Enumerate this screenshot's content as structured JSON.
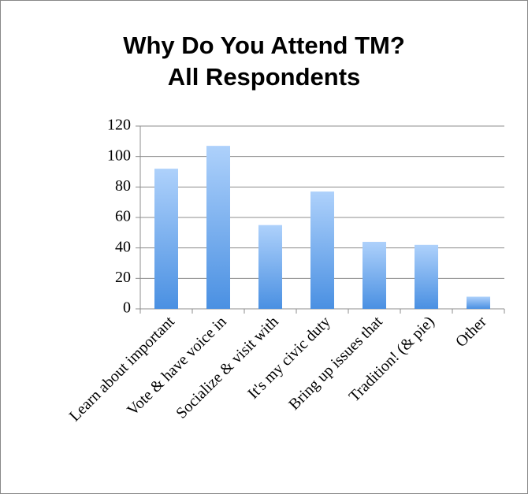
{
  "chart_data": {
    "type": "bar",
    "title": "Why Do You Attend TM?",
    "subtitle": "All Respondents",
    "categories": [
      "Learn about important",
      "Vote & have voice in",
      "Socialize & visit with",
      "It's my civic duty",
      "Bring up issues that",
      "Tradition! (& pie)",
      "Other"
    ],
    "values": [
      92,
      107,
      55,
      77,
      44,
      42,
      8
    ],
    "color": "#5b9bea",
    "ylim": [
      0,
      120
    ],
    "yticks": [
      0,
      20,
      40,
      60,
      80,
      100,
      120
    ],
    "grid": true
  }
}
